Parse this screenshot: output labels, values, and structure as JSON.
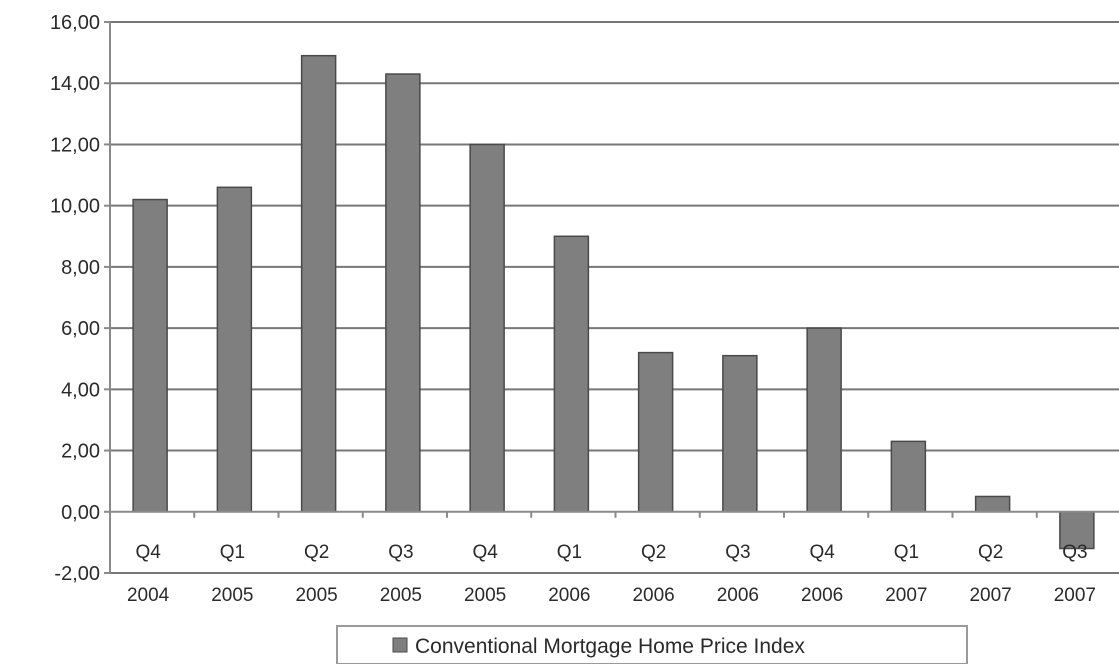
{
  "chart_data": {
    "type": "bar",
    "categories": [
      [
        "Q4",
        "2004"
      ],
      [
        "Q1",
        "2005"
      ],
      [
        "Q2",
        "2005"
      ],
      [
        "Q3",
        "2005"
      ],
      [
        "Q4",
        "2005"
      ],
      [
        "Q1",
        "2006"
      ],
      [
        "Q2",
        "2006"
      ],
      [
        "Q3",
        "2006"
      ],
      [
        "Q4",
        "2006"
      ],
      [
        "Q1",
        "2007"
      ],
      [
        "Q2",
        "2007"
      ],
      [
        "Q3",
        "2007"
      ]
    ],
    "series": [
      {
        "name": "Conventional Mortgage Home Price Index",
        "values": [
          10.2,
          10.6,
          14.9,
          14.3,
          12.0,
          9.0,
          5.2,
          5.1,
          6.0,
          2.3,
          0.5,
          -1.2
        ]
      }
    ],
    "y_ticks": [
      "16,00",
      "14,00",
      "12,00",
      "10,00",
      "8,00",
      "6,00",
      "4,00",
      "2,00",
      "0,00",
      "-2,00"
    ],
    "ylim": [
      -2,
      16
    ],
    "grid": true,
    "legend_position": "bottom",
    "colors": {
      "bar_fill": "#7f7f7f",
      "bar_stroke": "#4a4a4a",
      "grid": "#777777",
      "axis": "#8a8a8a",
      "text": "#2a2a2a"
    }
  }
}
